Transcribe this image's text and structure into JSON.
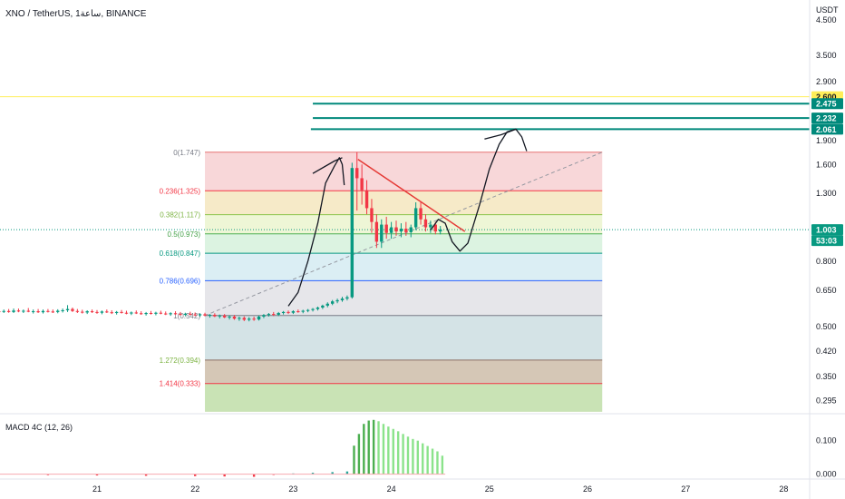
{
  "header": {
    "title": "XNO / TetherUS, 1ساعة, BINANCE"
  },
  "price_axis": {
    "unit": "USDT",
    "ticks": [
      "4.500",
      "3.500",
      "2.900",
      "1.900",
      "1.600",
      "1.300",
      "0.800",
      "0.650",
      "0.500",
      "0.420",
      "0.350",
      "0.295"
    ]
  },
  "price_tags": [
    {
      "label": "2.600",
      "value": 2.6,
      "bg": "#ffee58",
      "fg": "#131722"
    },
    {
      "label": "2.475",
      "value": 2.475,
      "bg": "#00897b",
      "fg": "#ffffff"
    },
    {
      "label": "2.232",
      "value": 2.232,
      "bg": "#00897b",
      "fg": "#ffffff"
    },
    {
      "label": "2.061",
      "value": 2.061,
      "bg": "#00897b",
      "fg": "#ffffff"
    },
    {
      "label": "1.003",
      "value": 1.003,
      "bg": "#089981",
      "fg": "#ffffff"
    },
    {
      "label": "53:03",
      "value": 1.003,
      "bg": "#089981",
      "fg": "#ffffff",
      "countdown": true
    }
  ],
  "time_axis": {
    "ticks": [
      {
        "label": "21",
        "day": 21
      },
      {
        "label": "22",
        "day": 22
      },
      {
        "label": "23",
        "day": 23
      },
      {
        "label": "24",
        "day": 24
      },
      {
        "label": "25",
        "day": 25
      },
      {
        "label": "26",
        "day": 26
      },
      {
        "label": "27",
        "day": 27
      },
      {
        "label": "28",
        "day": 28
      }
    ]
  },
  "macd": {
    "label": "MACD 4C (12, 26)",
    "ticks": [
      "0.100",
      "0.000"
    ]
  },
  "colors": {
    "up": "#089981",
    "down": "#f23645",
    "axis_text": "#131722",
    "fib_label_red": "#f23645",
    "fib_label_green": "#4caf50",
    "fib_label_teal": "#089981",
    "fib_label_blue": "#2962ff",
    "drawing": "#131722",
    "trendline": "#e53935"
  },
  "chart_data": {
    "type": "candlestick",
    "symbol": "XNO / TetherUS",
    "scale": "log",
    "ylim": [
      0.27,
      5.2
    ],
    "xlim_days": [
      20.0,
      28.25
    ],
    "fib_levels": [
      {
        "ratio": "0",
        "label": "0(1.747)",
        "price": 1.747,
        "fill": "#f8d7d9",
        "line": "#e57373",
        "label_color": "#787b86"
      },
      {
        "ratio": "0.236",
        "label": "0.236(1.325)",
        "price": 1.325,
        "fill": "#f6eac8",
        "line": "#f23645",
        "label_color": "#f23645"
      },
      {
        "ratio": "0.382",
        "label": "0.382(1.117)",
        "price": 1.117,
        "fill": "#eef6d6",
        "line": "#8bc34a",
        "label_color": "#7cb342"
      },
      {
        "ratio": "0.5",
        "label": "0.5(0.973)",
        "price": 0.973,
        "fill": "#dcf3e1",
        "line": "#4caf50",
        "label_color": "#43a047"
      },
      {
        "ratio": "0.618",
        "label": "0.618(0.847)",
        "price": 0.847,
        "fill": "#dbeef4",
        "line": "#089981",
        "label_color": "#089981"
      },
      {
        "ratio": "0.786",
        "label": "0.786(0.696)",
        "price": 0.696,
        "fill": "#e6e6ea",
        "line": "#2962ff",
        "label_color": "#2962ff"
      },
      {
        "ratio": "1",
        "label": "1(0.542)",
        "price": 0.542,
        "fill": "#d4e3e6",
        "line": "#787b86",
        "label_color": "#787b86"
      },
      {
        "ratio": "1.272",
        "label": "1.272(0.394)",
        "price": 0.394,
        "fill": "#d5c7b6",
        "line": "#8d6e63",
        "label_color": "#7cb342"
      },
      {
        "ratio": "1.414",
        "label": "1.414(0.333)",
        "price": 0.333,
        "fill": "#c9e3b5",
        "line": "#f23645",
        "label_color": "#f23645"
      }
    ],
    "fib_bottom": 0.272,
    "fib_start_day": 22.1,
    "fib_end_day": 26.15,
    "candles": [
      {
        "d": 20.0,
        "o": 0.559,
        "h": 0.565,
        "l": 0.552,
        "c": 0.557
      },
      {
        "d": 20.05,
        "o": 0.557,
        "h": 0.566,
        "l": 0.552,
        "c": 0.56
      },
      {
        "d": 20.1,
        "o": 0.56,
        "h": 0.568,
        "l": 0.553,
        "c": 0.556
      },
      {
        "d": 20.15,
        "o": 0.556,
        "h": 0.57,
        "l": 0.552,
        "c": 0.562
      },
      {
        "d": 20.2,
        "o": 0.562,
        "h": 0.57,
        "l": 0.555,
        "c": 0.558
      },
      {
        "d": 20.25,
        "o": 0.558,
        "h": 0.566,
        "l": 0.552,
        "c": 0.561
      },
      {
        "d": 20.3,
        "o": 0.561,
        "h": 0.572,
        "l": 0.555,
        "c": 0.557
      },
      {
        "d": 20.35,
        "o": 0.557,
        "h": 0.566,
        "l": 0.55,
        "c": 0.559
      },
      {
        "d": 20.4,
        "o": 0.559,
        "h": 0.568,
        "l": 0.552,
        "c": 0.555
      },
      {
        "d": 20.45,
        "o": 0.555,
        "h": 0.566,
        "l": 0.55,
        "c": 0.56
      },
      {
        "d": 20.5,
        "o": 0.56,
        "h": 0.568,
        "l": 0.554,
        "c": 0.558
      },
      {
        "d": 20.55,
        "o": 0.558,
        "h": 0.566,
        "l": 0.552,
        "c": 0.556
      },
      {
        "d": 20.6,
        "o": 0.556,
        "h": 0.567,
        "l": 0.551,
        "c": 0.561
      },
      {
        "d": 20.65,
        "o": 0.561,
        "h": 0.57,
        "l": 0.554,
        "c": 0.563
      },
      {
        "d": 20.7,
        "o": 0.563,
        "h": 0.584,
        "l": 0.556,
        "c": 0.568
      },
      {
        "d": 20.75,
        "o": 0.568,
        "h": 0.574,
        "l": 0.556,
        "c": 0.56
      },
      {
        "d": 20.8,
        "o": 0.56,
        "h": 0.568,
        "l": 0.552,
        "c": 0.557
      },
      {
        "d": 20.85,
        "o": 0.557,
        "h": 0.565,
        "l": 0.55,
        "c": 0.554
      },
      {
        "d": 20.9,
        "o": 0.554,
        "h": 0.563,
        "l": 0.548,
        "c": 0.559
      },
      {
        "d": 20.95,
        "o": 0.559,
        "h": 0.566,
        "l": 0.552,
        "c": 0.556
      },
      {
        "d": 21.0,
        "o": 0.556,
        "h": 0.564,
        "l": 0.549,
        "c": 0.553
      },
      {
        "d": 21.05,
        "o": 0.553,
        "h": 0.562,
        "l": 0.547,
        "c": 0.558
      },
      {
        "d": 21.1,
        "o": 0.558,
        "h": 0.566,
        "l": 0.552,
        "c": 0.555
      },
      {
        "d": 21.15,
        "o": 0.555,
        "h": 0.563,
        "l": 0.548,
        "c": 0.552
      },
      {
        "d": 21.2,
        "o": 0.552,
        "h": 0.56,
        "l": 0.546,
        "c": 0.556
      },
      {
        "d": 21.25,
        "o": 0.556,
        "h": 0.564,
        "l": 0.55,
        "c": 0.553
      },
      {
        "d": 21.3,
        "o": 0.553,
        "h": 0.561,
        "l": 0.547,
        "c": 0.55
      },
      {
        "d": 21.35,
        "o": 0.55,
        "h": 0.558,
        "l": 0.544,
        "c": 0.554
      },
      {
        "d": 21.4,
        "o": 0.554,
        "h": 0.562,
        "l": 0.548,
        "c": 0.551
      },
      {
        "d": 21.45,
        "o": 0.551,
        "h": 0.559,
        "l": 0.545,
        "c": 0.548
      },
      {
        "d": 21.5,
        "o": 0.548,
        "h": 0.556,
        "l": 0.542,
        "c": 0.552
      },
      {
        "d": 21.55,
        "o": 0.552,
        "h": 0.56,
        "l": 0.546,
        "c": 0.549
      },
      {
        "d": 21.6,
        "o": 0.549,
        "h": 0.557,
        "l": 0.543,
        "c": 0.553
      },
      {
        "d": 21.65,
        "o": 0.553,
        "h": 0.561,
        "l": 0.547,
        "c": 0.55
      },
      {
        "d": 21.7,
        "o": 0.55,
        "h": 0.558,
        "l": 0.544,
        "c": 0.547
      },
      {
        "d": 21.75,
        "o": 0.547,
        "h": 0.555,
        "l": 0.541,
        "c": 0.551
      },
      {
        "d": 21.8,
        "o": 0.551,
        "h": 0.559,
        "l": 0.545,
        "c": 0.548
      },
      {
        "d": 21.85,
        "o": 0.548,
        "h": 0.556,
        "l": 0.542,
        "c": 0.545
      },
      {
        "d": 21.9,
        "o": 0.545,
        "h": 0.553,
        "l": 0.539,
        "c": 0.549
      },
      {
        "d": 21.95,
        "o": 0.549,
        "h": 0.557,
        "l": 0.543,
        "c": 0.546
      },
      {
        "d": 22.0,
        "o": 0.546,
        "h": 0.554,
        "l": 0.54,
        "c": 0.543
      },
      {
        "d": 22.05,
        "o": 0.543,
        "h": 0.551,
        "l": 0.537,
        "c": 0.547
      },
      {
        "d": 22.1,
        "o": 0.547,
        "h": 0.553,
        "l": 0.539,
        "c": 0.542
      },
      {
        "d": 22.15,
        "o": 0.542,
        "h": 0.548,
        "l": 0.534,
        "c": 0.545
      },
      {
        "d": 22.2,
        "o": 0.545,
        "h": 0.551,
        "l": 0.536,
        "c": 0.539
      },
      {
        "d": 22.25,
        "o": 0.539,
        "h": 0.546,
        "l": 0.531,
        "c": 0.542
      },
      {
        "d": 22.3,
        "o": 0.542,
        "h": 0.548,
        "l": 0.532,
        "c": 0.535
      },
      {
        "d": 22.35,
        "o": 0.535,
        "h": 0.543,
        "l": 0.527,
        "c": 0.538
      },
      {
        "d": 22.4,
        "o": 0.538,
        "h": 0.544,
        "l": 0.526,
        "c": 0.53
      },
      {
        "d": 22.45,
        "o": 0.53,
        "h": 0.538,
        "l": 0.522,
        "c": 0.533
      },
      {
        "d": 22.5,
        "o": 0.533,
        "h": 0.539,
        "l": 0.521,
        "c": 0.526
      },
      {
        "d": 22.55,
        "o": 0.526,
        "h": 0.536,
        "l": 0.52,
        "c": 0.53
      },
      {
        "d": 22.6,
        "o": 0.53,
        "h": 0.538,
        "l": 0.522,
        "c": 0.527
      },
      {
        "d": 22.65,
        "o": 0.527,
        "h": 0.542,
        "l": 0.523,
        "c": 0.538
      },
      {
        "d": 22.7,
        "o": 0.538,
        "h": 0.548,
        "l": 0.532,
        "c": 0.544
      },
      {
        "d": 22.75,
        "o": 0.544,
        "h": 0.552,
        "l": 0.538,
        "c": 0.548
      },
      {
        "d": 22.8,
        "o": 0.548,
        "h": 0.556,
        "l": 0.54,
        "c": 0.545
      },
      {
        "d": 22.85,
        "o": 0.545,
        "h": 0.556,
        "l": 0.54,
        "c": 0.552
      },
      {
        "d": 22.9,
        "o": 0.552,
        "h": 0.56,
        "l": 0.546,
        "c": 0.556
      },
      {
        "d": 22.95,
        "o": 0.556,
        "h": 0.562,
        "l": 0.548,
        "c": 0.553
      },
      {
        "d": 23.0,
        "o": 0.553,
        "h": 0.563,
        "l": 0.548,
        "c": 0.559
      },
      {
        "d": 23.05,
        "o": 0.559,
        "h": 0.566,
        "l": 0.553,
        "c": 0.557
      },
      {
        "d": 23.1,
        "o": 0.557,
        "h": 0.565,
        "l": 0.551,
        "c": 0.561
      },
      {
        "d": 23.15,
        "o": 0.561,
        "h": 0.568,
        "l": 0.555,
        "c": 0.564
      },
      {
        "d": 23.2,
        "o": 0.564,
        "h": 0.572,
        "l": 0.558,
        "c": 0.568
      },
      {
        "d": 23.25,
        "o": 0.568,
        "h": 0.578,
        "l": 0.562,
        "c": 0.574
      },
      {
        "d": 23.3,
        "o": 0.574,
        "h": 0.586,
        "l": 0.568,
        "c": 0.582
      },
      {
        "d": 23.35,
        "o": 0.582,
        "h": 0.596,
        "l": 0.575,
        "c": 0.59
      },
      {
        "d": 23.4,
        "o": 0.59,
        "h": 0.606,
        "l": 0.584,
        "c": 0.6
      },
      {
        "d": 23.45,
        "o": 0.6,
        "h": 0.612,
        "l": 0.592,
        "c": 0.605
      },
      {
        "d": 23.5,
        "o": 0.605,
        "h": 0.62,
        "l": 0.598,
        "c": 0.612
      },
      {
        "d": 23.55,
        "o": 0.612,
        "h": 0.626,
        "l": 0.604,
        "c": 0.618
      },
      {
        "d": 23.6,
        "o": 0.618,
        "h": 1.62,
        "l": 0.612,
        "c": 1.56
      },
      {
        "d": 23.65,
        "o": 1.56,
        "h": 1.747,
        "l": 1.15,
        "c": 1.45
      },
      {
        "d": 23.7,
        "o": 1.45,
        "h": 1.6,
        "l": 1.2,
        "c": 1.33
      },
      {
        "d": 23.75,
        "o": 1.33,
        "h": 1.43,
        "l": 1.12,
        "c": 1.17
      },
      {
        "d": 23.8,
        "o": 1.17,
        "h": 1.25,
        "l": 0.98,
        "c": 1.06
      },
      {
        "d": 23.85,
        "o": 1.06,
        "h": 1.12,
        "l": 0.88,
        "c": 0.92
      },
      {
        "d": 23.9,
        "o": 0.92,
        "h": 1.08,
        "l": 0.88,
        "c": 1.04
      },
      {
        "d": 23.95,
        "o": 1.04,
        "h": 1.1,
        "l": 0.94,
        "c": 0.98
      },
      {
        "d": 24.0,
        "o": 0.98,
        "h": 1.06,
        "l": 0.94,
        "c": 1.02
      },
      {
        "d": 24.05,
        "o": 1.02,
        "h": 1.07,
        "l": 0.96,
        "c": 0.99
      },
      {
        "d": 24.1,
        "o": 0.99,
        "h": 1.05,
        "l": 0.95,
        "c": 1.01
      },
      {
        "d": 24.15,
        "o": 1.01,
        "h": 1.06,
        "l": 0.96,
        "c": 0.985
      },
      {
        "d": 24.2,
        "o": 0.985,
        "h": 1.04,
        "l": 0.95,
        "c": 1.02
      },
      {
        "d": 24.25,
        "o": 1.02,
        "h": 1.22,
        "l": 1.0,
        "c": 1.17
      },
      {
        "d": 24.3,
        "o": 1.17,
        "h": 1.23,
        "l": 1.04,
        "c": 1.08
      },
      {
        "d": 24.35,
        "o": 1.08,
        "h": 1.12,
        "l": 0.99,
        "c": 1.02
      },
      {
        "d": 24.4,
        "o": 1.02,
        "h": 1.07,
        "l": 0.98,
        "c": 1.04
      },
      {
        "d": 24.45,
        "o": 1.04,
        "h": 1.06,
        "l": 0.97,
        "c": 0.99
      },
      {
        "d": 24.5,
        "o": 0.99,
        "h": 1.03,
        "l": 0.97,
        "c": 1.003
      }
    ],
    "macd_hist": [
      {
        "d": 20.0,
        "v": -0.002
      },
      {
        "d": 20.5,
        "v": -0.003
      },
      {
        "d": 21.0,
        "v": -0.004
      },
      {
        "d": 21.5,
        "v": -0.005
      },
      {
        "d": 22.0,
        "v": -0.006
      },
      {
        "d": 22.3,
        "v": -0.007
      },
      {
        "d": 22.6,
        "v": -0.008
      },
      {
        "d": 22.8,
        "v": -0.004
      },
      {
        "d": 23.0,
        "v": 0.002
      },
      {
        "d": 23.2,
        "v": 0.004
      },
      {
        "d": 23.4,
        "v": 0.006
      },
      {
        "d": 23.55,
        "v": 0.008
      },
      {
        "d": 23.62,
        "v": 0.085
      },
      {
        "d": 23.67,
        "v": 0.12
      },
      {
        "d": 23.72,
        "v": 0.15
      },
      {
        "d": 23.77,
        "v": 0.16
      },
      {
        "d": 23.82,
        "v": 0.162
      },
      {
        "d": 23.87,
        "v": 0.158
      },
      {
        "d": 23.92,
        "v": 0.15
      },
      {
        "d": 23.97,
        "v": 0.142
      },
      {
        "d": 24.02,
        "v": 0.135
      },
      {
        "d": 24.07,
        "v": 0.128
      },
      {
        "d": 24.12,
        "v": 0.12
      },
      {
        "d": 24.17,
        "v": 0.112
      },
      {
        "d": 24.22,
        "v": 0.105
      },
      {
        "d": 24.27,
        "v": 0.1
      },
      {
        "d": 24.32,
        "v": 0.092
      },
      {
        "d": 24.37,
        "v": 0.084
      },
      {
        "d": 24.42,
        "v": 0.076
      },
      {
        "d": 24.47,
        "v": 0.068
      },
      {
        "d": 24.52,
        "v": 0.055
      }
    ],
    "macd_ylim": [
      -0.012,
      0.175
    ],
    "horizontal_lines": [
      {
        "price": 2.6,
        "color": "#ffee58",
        "from_day": 20.0
      },
      {
        "price": 2.475,
        "color": "#00897b",
        "from_day": 23.2
      },
      {
        "price": 2.232,
        "color": "#00897b",
        "from_day": 23.2
      },
      {
        "price": 2.061,
        "color": "#00897b",
        "from_day": 23.18
      }
    ],
    "current_price": 1.003,
    "trend_line": {
      "from": {
        "d": 22.1,
        "p": 0.542
      },
      "to": {
        "d": 26.15,
        "p": 1.747
      }
    },
    "descending_line": {
      "from": {
        "d": 23.66,
        "p": 1.66
      },
      "to": {
        "d": 24.75,
        "p": 0.99
      }
    },
    "sketch_rise": [
      {
        "d": 22.95,
        "p": 0.58
      },
      {
        "d": 23.05,
        "p": 0.64
      },
      {
        "d": 23.15,
        "p": 0.8
      },
      {
        "d": 23.25,
        "p": 1.05
      },
      {
        "d": 23.33,
        "p": 1.4
      },
      {
        "d": 23.42,
        "p": 1.58
      },
      {
        "d": 23.47,
        "p": 1.68
      },
      {
        "d": 23.5,
        "p": 1.6
      },
      {
        "d": 23.52,
        "p": 1.38
      }
    ],
    "sketch_arrow_head": [
      {
        "d": 23.2,
        "p": 1.5
      },
      {
        "d": 23.42,
        "p": 1.64
      },
      {
        "d": 23.5,
        "p": 1.68
      }
    ],
    "sketch_future": [
      {
        "d": 24.4,
        "p": 1.0
      },
      {
        "d": 24.48,
        "p": 1.08
      },
      {
        "d": 24.55,
        "p": 1.05
      },
      {
        "d": 24.62,
        "p": 0.92
      },
      {
        "d": 24.7,
        "p": 0.86
      },
      {
        "d": 24.78,
        "p": 0.91
      },
      {
        "d": 24.9,
        "p": 1.2
      },
      {
        "d": 25.0,
        "p": 1.55
      },
      {
        "d": 25.1,
        "p": 1.85
      },
      {
        "d": 25.18,
        "p": 2.02
      },
      {
        "d": 25.27,
        "p": 2.06
      },
      {
        "d": 25.33,
        "p": 1.95
      },
      {
        "d": 25.38,
        "p": 1.76
      }
    ],
    "sketch_future_head": [
      {
        "d": 24.95,
        "p": 1.92
      },
      {
        "d": 25.12,
        "p": 1.98
      },
      {
        "d": 25.27,
        "p": 2.06
      }
    ]
  }
}
